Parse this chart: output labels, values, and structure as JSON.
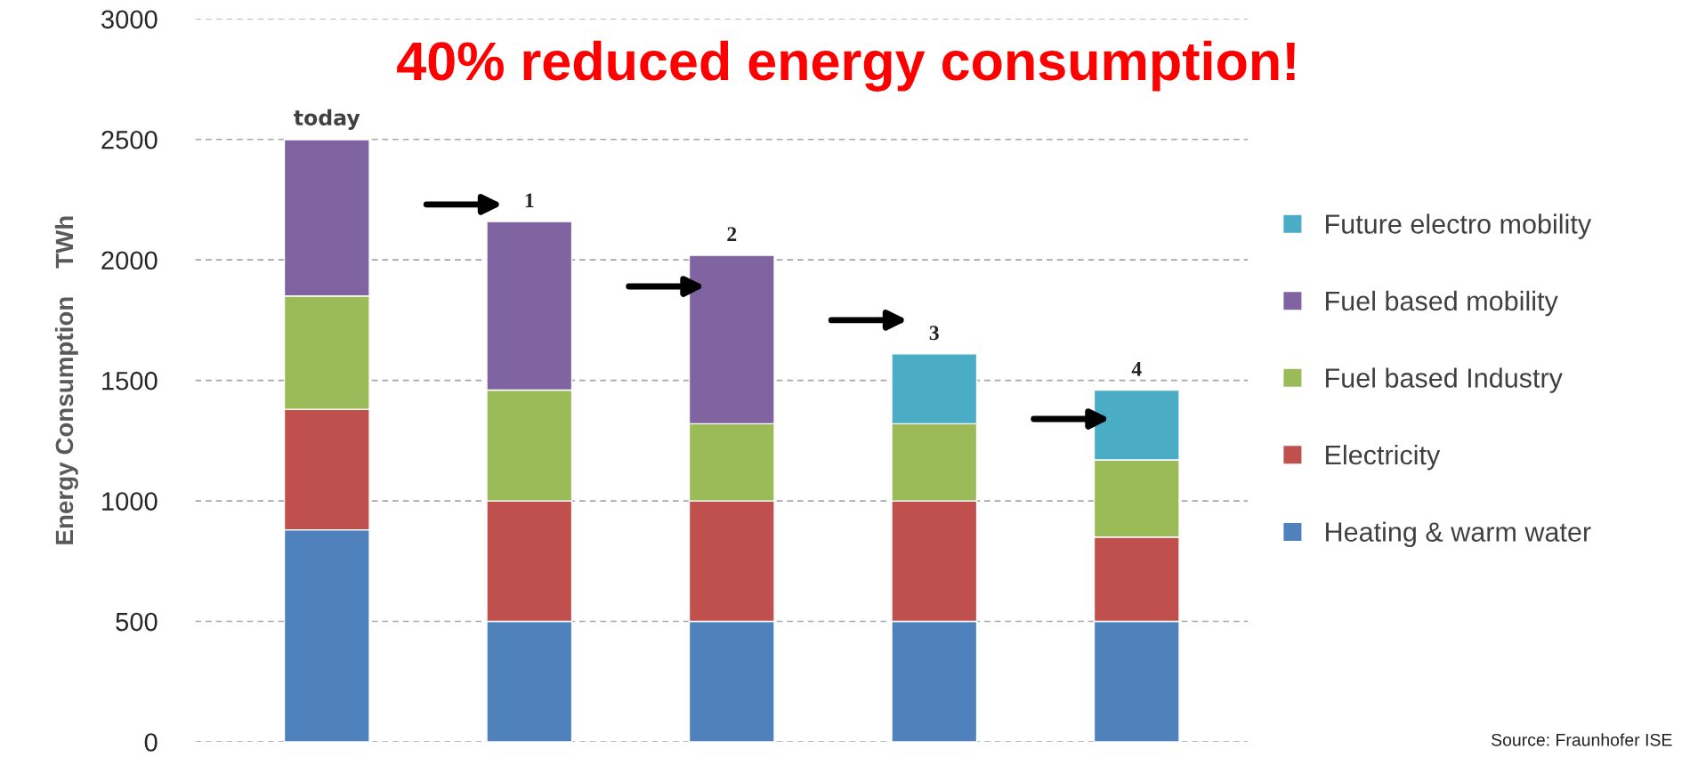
{
  "chart_data": {
    "type": "bar",
    "stacked": true,
    "categories": [
      "today",
      "1",
      "2",
      "3",
      "4"
    ],
    "series": [
      {
        "name": "Heating & warm water",
        "color": "#4f81bd",
        "values": [
          880,
          500,
          500,
          500,
          500
        ]
      },
      {
        "name": "Electricity",
        "color": "#c0504d",
        "values": [
          500,
          500,
          500,
          500,
          350
        ]
      },
      {
        "name": "Fuel based Industry",
        "color": "#9bbb59",
        "values": [
          470,
          460,
          320,
          320,
          320
        ]
      },
      {
        "name": "Fuel based mobility",
        "color": "#8064a2",
        "values": [
          650,
          700,
          700,
          null,
          null
        ]
      },
      {
        "name": "Future electro mobility",
        "color": "#4bacc6",
        "values": [
          null,
          null,
          null,
          290,
          290
        ]
      }
    ],
    "ylabel": "Energy Consumption    TWh",
    "ylim": [
      0,
      3000
    ],
    "yticks": [
      0,
      500,
      1000,
      1500,
      2000,
      2500,
      3000
    ],
    "grid": "y",
    "legend": "right",
    "annotations": [
      "40% reduced energy consumption!",
      "Source: Fraunhofer ISE"
    ]
  }
}
